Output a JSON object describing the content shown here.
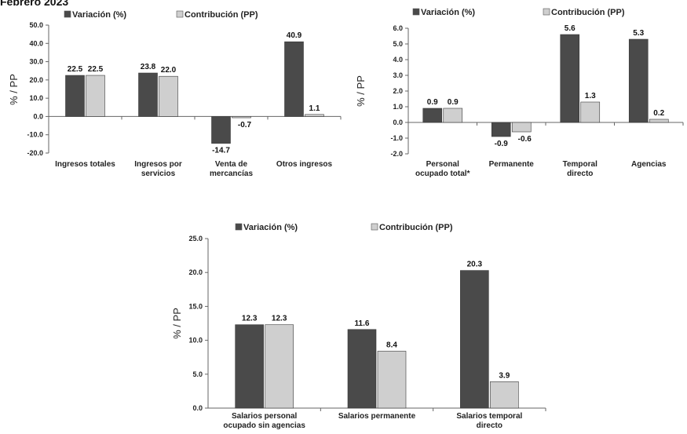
{
  "page": {
    "title": "Febrero 2023"
  },
  "colors": {
    "variacion": "#4a4a4a",
    "contribucion": "#cfcfcf",
    "axis": "#666666"
  },
  "chart_data": [
    {
      "type": "bar",
      "title": "",
      "ylabel": "% / PP",
      "ylim": [
        -20,
        50
      ],
      "yticks": [
        "50.0",
        "40.0",
        "30.0",
        "20.0",
        "10.0",
        "0.0",
        "-10.0",
        "-20.0"
      ],
      "ytick_values": [
        50,
        40,
        30,
        20,
        10,
        0,
        -10,
        -20
      ],
      "categories": [
        [
          "Ingresos totales"
        ],
        [
          "Ingresos por",
          "servicios"
        ],
        [
          "Venta de",
          "mercancías"
        ],
        [
          "Otros ingresos"
        ]
      ],
      "series": [
        {
          "name": "Variación (%)",
          "values": [
            22.5,
            23.8,
            -14.7,
            40.9
          ],
          "labels": [
            "22.5",
            "23.8",
            "-14.7",
            "40.9"
          ]
        },
        {
          "name": "Contribución (PP)",
          "values": [
            22.5,
            22.0,
            -0.7,
            1.1
          ],
          "labels": [
            "22.5",
            "22.0",
            "-0.7",
            "1.1"
          ]
        }
      ],
      "legend": "top"
    },
    {
      "type": "bar",
      "title": "",
      "ylabel": "% / PP",
      "ylim": [
        -2,
        6
      ],
      "yticks": [
        "6.0",
        "5.0",
        "4.0",
        "3.0",
        "2.0",
        "1.0",
        "0.0",
        "-1.0",
        "-2.0"
      ],
      "ytick_values": [
        6,
        5,
        4,
        3,
        2,
        1,
        0,
        -1,
        -2
      ],
      "categories": [
        [
          "Personal",
          "ocupado total*"
        ],
        [
          "Permanente"
        ],
        [
          "Temporal",
          "directo"
        ],
        [
          "Agencias"
        ]
      ],
      "series": [
        {
          "name": "Variación (%)",
          "values": [
            0.9,
            -0.9,
            5.6,
            5.3
          ],
          "labels": [
            "0.9",
            "-0.9",
            "5.6",
            "5.3"
          ]
        },
        {
          "name": "Contribución (PP)",
          "values": [
            0.9,
            -0.6,
            1.3,
            0.2
          ],
          "labels": [
            "0.9",
            "-0.6",
            "1.3",
            "0.2"
          ]
        }
      ],
      "legend": "top"
    },
    {
      "type": "bar",
      "title": "",
      "ylabel": "% / PP",
      "ylim": [
        0,
        25
      ],
      "yticks": [
        "25.0",
        "20.0",
        "15.0",
        "10.0",
        "5.0",
        "0.0"
      ],
      "ytick_values": [
        25,
        20,
        15,
        10,
        5,
        0
      ],
      "categories": [
        [
          "Salarios personal",
          "ocupado sin agencias"
        ],
        [
          "Salarios permanente"
        ],
        [
          "Salarios temporal",
          "directo"
        ]
      ],
      "series": [
        {
          "name": "Variación (%)",
          "values": [
            12.3,
            11.6,
            20.3
          ],
          "labels": [
            "12.3",
            "11.6",
            "20.3"
          ]
        },
        {
          "name": "Contribución (PP)",
          "values": [
            12.3,
            8.4,
            3.9
          ],
          "labels": [
            "12.3",
            "8.4",
            "3.9"
          ]
        }
      ],
      "legend": "top"
    }
  ]
}
